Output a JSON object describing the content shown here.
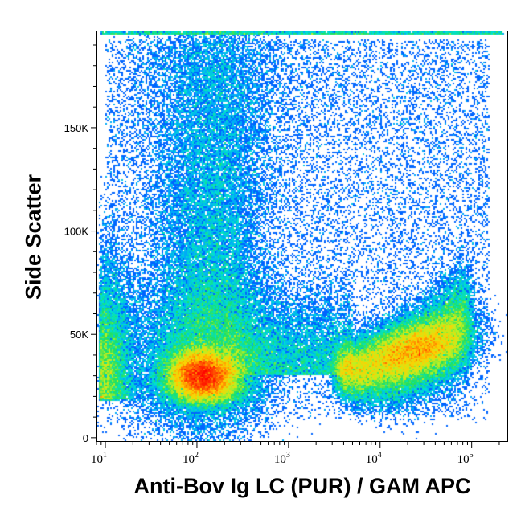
{
  "chart_data": {
    "type": "scatter",
    "subtype": "flow-cytometry-density",
    "xlabel": "Anti-Bov Ig LC (PUR) / GAM APC",
    "ylabel": "Side Scatter",
    "x_scale": "log",
    "xlim": [
      8,
      250000
    ],
    "ylim": [
      -2000,
      197000
    ],
    "x_ticks": [
      {
        "value": 10,
        "base": "10",
        "exp": "1"
      },
      {
        "value": 100,
        "base": "10",
        "exp": "2"
      },
      {
        "value": 1000,
        "base": "10",
        "exp": "3"
      },
      {
        "value": 10000,
        "base": "10",
        "exp": "4"
      },
      {
        "value": 100000,
        "base": "10",
        "exp": "5"
      }
    ],
    "y_ticks": [
      {
        "value": 0,
        "label": "0"
      },
      {
        "value": 50000,
        "label": "50K"
      },
      {
        "value": 100000,
        "label": "100K"
      },
      {
        "value": 150000,
        "label": "150K"
      }
    ],
    "populations": [
      {
        "name": "",
        "center_x": 110,
        "center_y": 30000,
        "peak_density": "high"
      },
      {
        "name": "",
        "center_x": 25000,
        "center_y": 42000,
        "peak_density": "medium"
      }
    ],
    "colormap": [
      "#0000ff",
      "#00a0ff",
      "#00e0d0",
      "#20e060",
      "#c0f020",
      "#ffd000",
      "#ff6000",
      "#ff0000"
    ],
    "grid": false,
    "legend": "none"
  }
}
